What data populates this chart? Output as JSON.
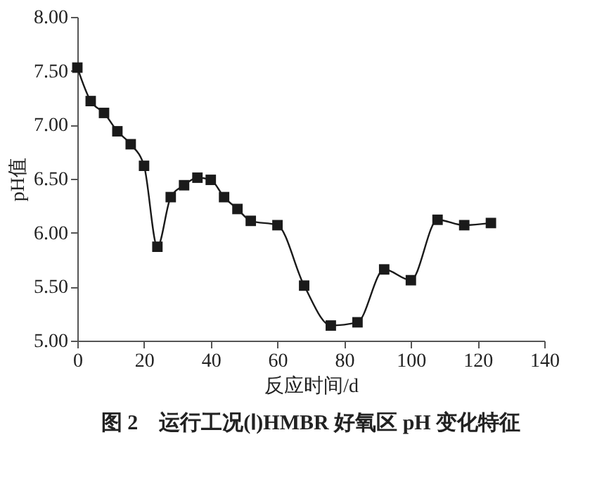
{
  "chart_data": {
    "type": "line",
    "title": "图 2　运行工况(Ⅰ)HMBR 好氧区 pH 变化特征",
    "xlabel": "反应时间/d",
    "ylabel": "pH值",
    "x": [
      0,
      4,
      8,
      12,
      16,
      20,
      24,
      28,
      32,
      36,
      40,
      44,
      48,
      52,
      60,
      68,
      76,
      84,
      92,
      100,
      108,
      116,
      124
    ],
    "series": [
      {
        "color": "#1a1a1a",
        "values": [
          7.53,
          7.22,
          7.11,
          6.94,
          6.82,
          6.62,
          5.87,
          6.33,
          6.44,
          6.51,
          6.49,
          6.33,
          6.22,
          6.11,
          6.07,
          5.51,
          5.14,
          5.17,
          5.66,
          5.56,
          6.12,
          6.07,
          6.09
        ]
      }
    ],
    "xlim": [
      0,
      140
    ],
    "xticks": [
      0,
      20,
      40,
      60,
      80,
      100,
      120,
      140
    ],
    "ylim": [
      5.0,
      8.0
    ],
    "yticks": [
      {
        "value": 5.0,
        "label": "5.00"
      },
      {
        "value": 5.5,
        "label": "5.50"
      },
      {
        "value": 6.0,
        "label": "6.00"
      },
      {
        "value": 6.5,
        "label": "6.50"
      },
      {
        "value": 7.0,
        "label": "7.00"
      },
      {
        "value": 7.5,
        "label": "7.50"
      },
      {
        "value": 8.0,
        "label": "8.00"
      }
    ],
    "marker": "square",
    "line_style": "solid",
    "grid": false
  }
}
